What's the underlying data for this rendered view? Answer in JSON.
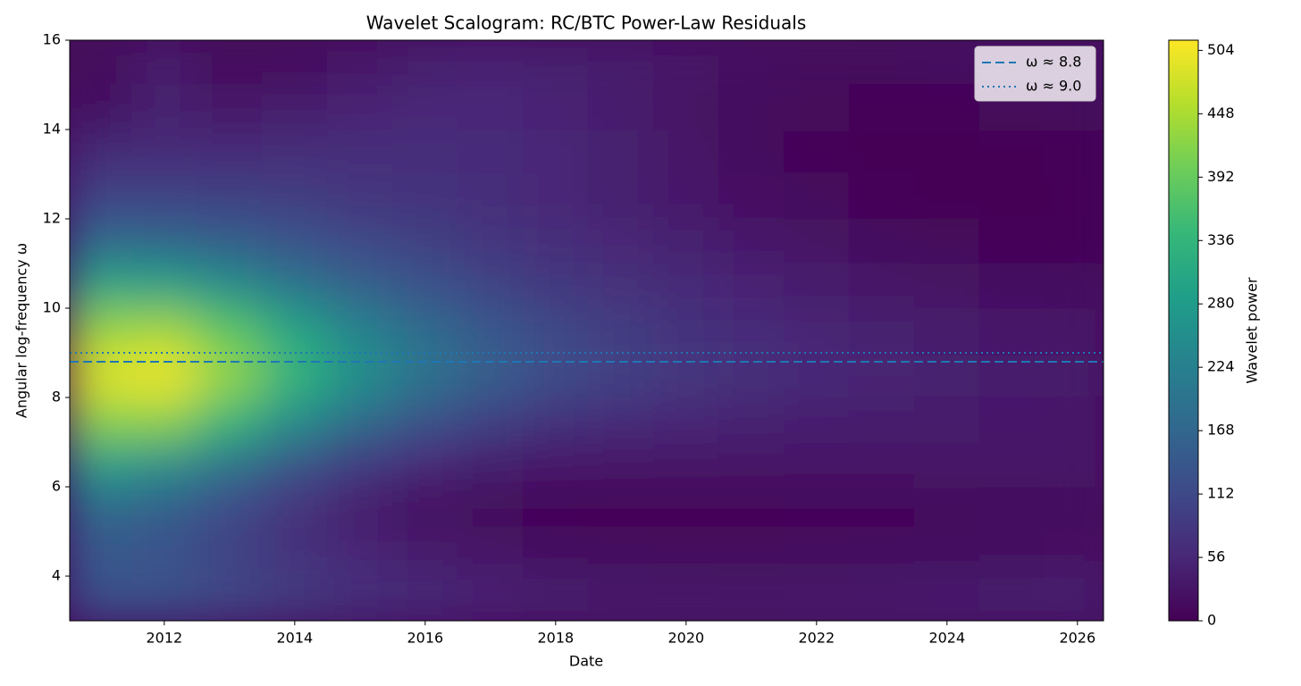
{
  "chart_data": {
    "type": "heatmap",
    "title": "Wavelet Scalogram: RC/BTC Power-Law Residuals",
    "x_label": "Date",
    "y_label": "Angular log-frequency ω",
    "colorbar_label": "Wavelet power",
    "colormap": "viridis",
    "x": [
      2011,
      2012,
      2013,
      2014,
      2015,
      2016,
      2017,
      2018,
      2019,
      2020,
      2021,
      2022,
      2023,
      2024,
      2025,
      2026
    ],
    "y": [
      3.5,
      4.5,
      5.5,
      6.5,
      7.5,
      8.5,
      9.5,
      10.5,
      11.5,
      12.5,
      13.5,
      14.5,
      15.5
    ],
    "z": [
      [
        130,
        130,
        110,
        90,
        75,
        60,
        50,
        45,
        40,
        38,
        36,
        38,
        40,
        42,
        45,
        48
      ],
      [
        140,
        130,
        100,
        75,
        55,
        40,
        30,
        20,
        15,
        12,
        12,
        14,
        16,
        18,
        20,
        22
      ],
      [
        170,
        150,
        110,
        70,
        40,
        20,
        10,
        5,
        3,
        3,
        4,
        6,
        8,
        10,
        12,
        14
      ],
      [
        280,
        250,
        190,
        130,
        85,
        55,
        40,
        35,
        32,
        30,
        30,
        30,
        30,
        30,
        30,
        30
      ],
      [
        420,
        420,
        340,
        250,
        180,
        130,
        95,
        75,
        62,
        55,
        48,
        43,
        40,
        38,
        35,
        33
      ],
      [
        490,
        505,
        430,
        340,
        260,
        200,
        155,
        120,
        100,
        82,
        70,
        60,
        52,
        45,
        40,
        36
      ],
      [
        430,
        440,
        380,
        300,
        230,
        180,
        140,
        110,
        90,
        75,
        62,
        52,
        45,
        38,
        33,
        30
      ],
      [
        300,
        290,
        250,
        200,
        160,
        130,
        105,
        85,
        70,
        60,
        50,
        40,
        32,
        25,
        20,
        18
      ],
      [
        170,
        165,
        150,
        130,
        110,
        95,
        80,
        65,
        55,
        45,
        35,
        25,
        15,
        10,
        8,
        8
      ],
      [
        100,
        100,
        95,
        90,
        80,
        75,
        65,
        55,
        45,
        35,
        22,
        12,
        6,
        4,
        4,
        5
      ],
      [
        60,
        60,
        60,
        65,
        65,
        65,
        60,
        55,
        45,
        30,
        15,
        8,
        5,
        5,
        5,
        8
      ],
      [
        20,
        45,
        30,
        40,
        50,
        55,
        55,
        50,
        40,
        25,
        15,
        10,
        8,
        8,
        10,
        12
      ],
      [
        10,
        40,
        10,
        15,
        30,
        45,
        50,
        45,
        40,
        30,
        20,
        15,
        15,
        20,
        25,
        25
      ]
    ],
    "xlim": [
      2010.55,
      2026.4
    ],
    "xticks": [
      2012,
      2014,
      2016,
      2018,
      2020,
      2022,
      2024,
      2026
    ],
    "ylim": [
      3,
      16
    ],
    "yticks": [
      4,
      6,
      8,
      10,
      12,
      14,
      16
    ],
    "zlim": [
      0,
      513
    ],
    "zticks": [
      0,
      56,
      112,
      168,
      224,
      280,
      336,
      392,
      448,
      504
    ],
    "hlines": [
      {
        "name": "ω ≈ 8.8",
        "value": 8.8,
        "style": "dashed",
        "color": "#1f77b4"
      },
      {
        "name": "ω ≈ 9.0",
        "value": 9.0,
        "style": "dotted",
        "color": "#1f77b4"
      }
    ],
    "legend": "upper right"
  }
}
